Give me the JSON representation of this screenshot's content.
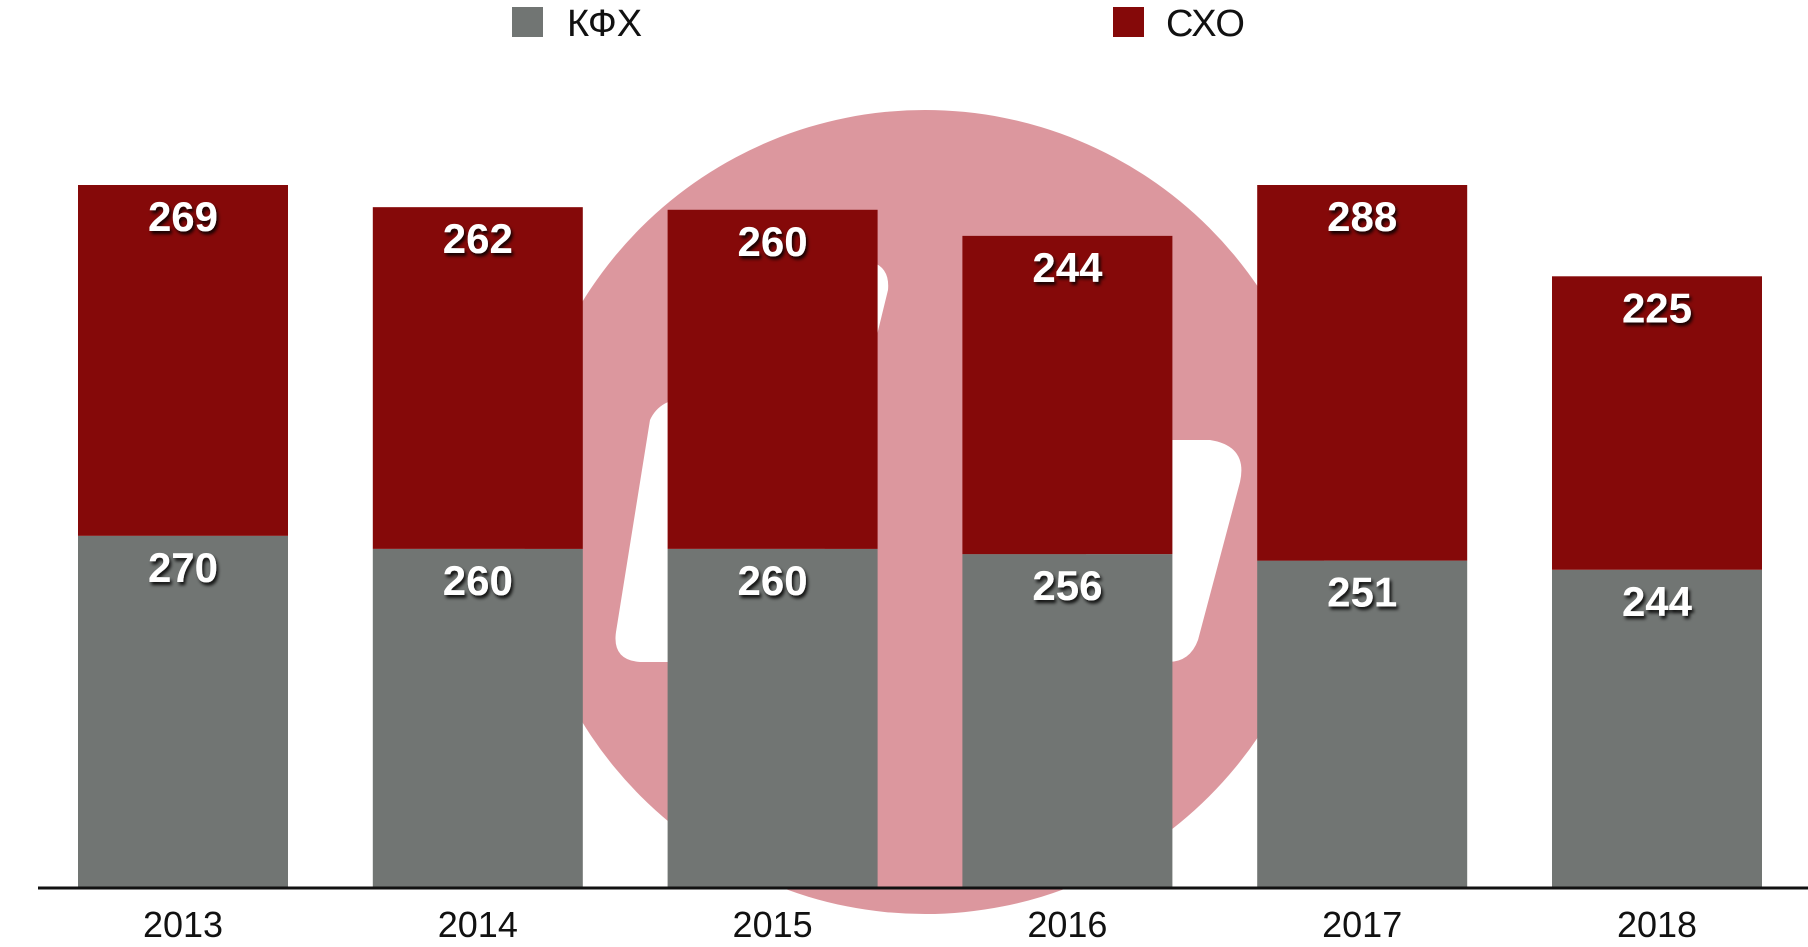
{
  "colors": {
    "kfx": "#717573",
    "sxo": "#850909",
    "watermark_circle": "#dc979e",
    "watermark_glyph": "#ffffff",
    "axis": "#111111",
    "label_shadow": "#000000"
  },
  "watermark": {
    "icon": "logo-watermark-icon"
  },
  "chart_data": {
    "type": "bar",
    "stacked": true,
    "categories": [
      "2013",
      "2014",
      "2015",
      "2016",
      "2017",
      "2018"
    ],
    "series": [
      {
        "name": "КФХ",
        "values": [
          270,
          260,
          260,
          256,
          251,
          244
        ]
      },
      {
        "name": "СХО",
        "values": [
          269,
          262,
          260,
          244,
          288,
          225
        ]
      }
    ],
    "ylim": [
      0,
      539
    ],
    "legend": "top-center",
    "grid": false,
    "title": "",
    "xlabel": "",
    "ylabel": ""
  }
}
